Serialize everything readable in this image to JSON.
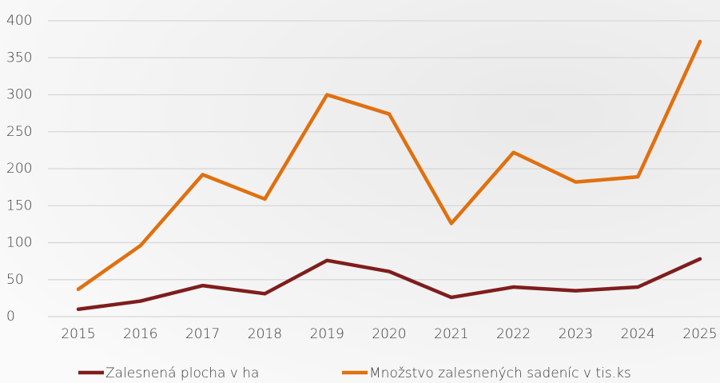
{
  "chart_data": {
    "type": "line",
    "categories": [
      "2015",
      "2016",
      "2017",
      "2018",
      "2019",
      "2020",
      "2021",
      "2022",
      "2023",
      "2024",
      "2025"
    ],
    "series": [
      {
        "name": "Zalesnená plocha v ha",
        "color": "#7f1d1d",
        "values": [
          10,
          21,
          42,
          31,
          76,
          61,
          26,
          40,
          35,
          40,
          78
        ]
      },
      {
        "name": "Množstvo zalesnených sadeníc v tis.ks",
        "color": "#e0700f",
        "values": [
          37,
          96,
          192,
          159,
          300,
          274,
          126,
          222,
          182,
          189,
          372
        ]
      }
    ],
    "ylim": [
      0,
      400
    ],
    "yticks": [
      0,
      50,
      100,
      150,
      200,
      250,
      300,
      350,
      400
    ],
    "grid": true,
    "legend": "bottom"
  }
}
